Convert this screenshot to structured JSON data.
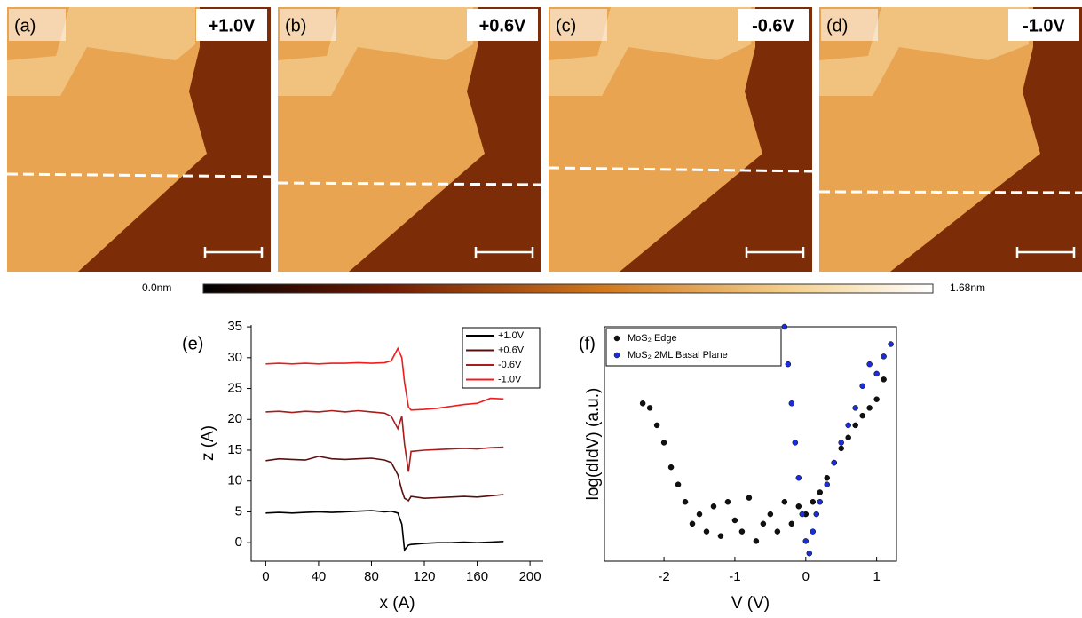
{
  "panels": [
    {
      "label": "(a)",
      "bias": "+1.0V",
      "bias_color": "#e0202a"
    },
    {
      "label": "(b)",
      "bias": "+0.6V",
      "bias_color": "#e0202a"
    },
    {
      "label": "(c)",
      "bias": "-0.6V",
      "bias_color": "#1aa0d8"
    },
    {
      "label": "(d)",
      "bias": "-1.0V",
      "bias_color": "#1aa0d8"
    }
  ],
  "colorbar": {
    "min_label": "0.0nm",
    "max_label": "1.68nm"
  },
  "chart_data": [
    {
      "type": "line",
      "panel_label": "(e)",
      "x_label": "x (A)",
      "y_label": "z (A)",
      "x": [
        0,
        10,
        20,
        30,
        40,
        50,
        60,
        70,
        80,
        90,
        95,
        100,
        103,
        105,
        108,
        110,
        120,
        130,
        140,
        150,
        160,
        170,
        180
      ],
      "series": [
        {
          "name": "+1.0V",
          "color": "#000000",
          "values": [
            4.8,
            4.9,
            4.8,
            4.9,
            5.0,
            4.9,
            5.0,
            5.1,
            5.2,
            5.0,
            5.1,
            4.8,
            3,
            -1.2,
            -0.4,
            -0.3,
            -0.1,
            0,
            0,
            0.1,
            0,
            0.1,
            0.2
          ]
        },
        {
          "name": "+0.6V",
          "color": "#5a0f0f",
          "values": [
            13.3,
            13.6,
            13.5,
            13.4,
            14.0,
            13.6,
            13.5,
            13.6,
            13.7,
            13.4,
            13,
            11,
            8.5,
            7.2,
            6.8,
            7.5,
            7.2,
            7.3,
            7.4,
            7.5,
            7.4,
            7.6,
            7.8
          ]
        },
        {
          "name": "-0.6V",
          "color": "#a81c1c",
          "values": [
            21.2,
            21.3,
            21.1,
            21.3,
            21.2,
            21.4,
            21.2,
            21.4,
            21.2,
            21.0,
            20.5,
            18.5,
            20.5,
            16,
            11.5,
            14.8,
            15,
            15.1,
            15.2,
            15.3,
            15.2,
            15.4,
            15.5
          ]
        },
        {
          "name": "-1.0V",
          "color": "#f01c1c",
          "values": [
            29,
            29.1,
            29,
            29.1,
            29,
            29.1,
            29.1,
            29.2,
            29.1,
            29.2,
            29.5,
            31.5,
            30,
            26,
            22,
            21.5,
            21.6,
            21.8,
            22.1,
            22.4,
            22.6,
            23.4,
            23.3
          ]
        }
      ],
      "xlim": [
        -11,
        210
      ],
      "ylim": [
        -3,
        35.3
      ],
      "xticks": [
        0,
        40,
        80,
        120,
        160,
        200
      ],
      "yticks": [
        0,
        5,
        10,
        15,
        20,
        25,
        30,
        35
      ],
      "legend": "upper right"
    },
    {
      "type": "scatter",
      "panel_label": "(f)",
      "x_label": "V (V)",
      "y_label": "log(dIdV) (a.u.)",
      "log_y": true,
      "series": [
        {
          "name": "MoS₂ Edge",
          "color": "#111111",
          "x": [
            -2.3,
            -2.2,
            -2.1,
            -2.0,
            -1.9,
            -1.8,
            -1.7,
            -1.6,
            -1.5,
            -1.4,
            -1.3,
            -1.2,
            -1.1,
            -1.0,
            -0.9,
            -0.8,
            -0.7,
            -0.6,
            -0.5,
            -0.4,
            -0.3,
            -0.2,
            -0.1,
            0,
            0.1,
            0.2,
            0.3,
            0.4,
            0.5,
            0.6,
            0.7,
            0.8,
            0.9,
            1.0,
            1.1
          ],
          "values": [
            2.0,
            1.8,
            1.2,
            0.8,
            0.45,
            0.3,
            0.2,
            0.12,
            0.15,
            0.1,
            0.18,
            0.09,
            0.2,
            0.13,
            0.1,
            0.22,
            0.08,
            0.12,
            0.15,
            0.1,
            0.2,
            0.12,
            0.18,
            0.15,
            0.2,
            0.25,
            0.35,
            0.5,
            0.7,
            0.9,
            1.2,
            1.5,
            1.8,
            2.2,
            3.5
          ]
        },
        {
          "name": "MoS₂ 2ML Basal Plane",
          "color": "#1a2ee0",
          "x": [
            -0.3,
            -0.25,
            -0.2,
            -0.15,
            -0.1,
            -0.05,
            0,
            0.05,
            0.1,
            0.15,
            0.2,
            0.3,
            0.4,
            0.5,
            0.6,
            0.7,
            0.8,
            0.9,
            1.0,
            1.1,
            1.2
          ],
          "values": [
            12,
            5,
            2,
            0.8,
            0.35,
            0.15,
            0.08,
            0.06,
            0.1,
            0.15,
            0.2,
            0.3,
            0.5,
            0.8,
            1.2,
            1.8,
            3,
            5,
            4,
            6,
            8
          ]
        }
      ],
      "xlim": [
        -2.84,
        1.28
      ],
      "ylim": [
        0.05,
        12
      ],
      "xticks": [
        -2,
        -1,
        0,
        1
      ],
      "legend": "upper left"
    }
  ]
}
